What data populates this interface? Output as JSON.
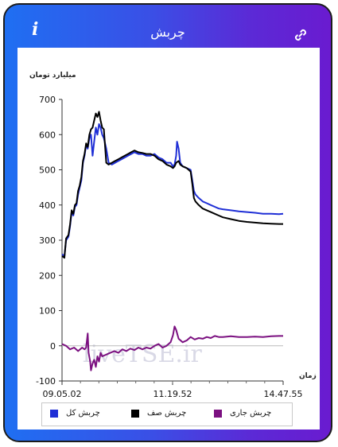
{
  "header": {
    "title": "چربش",
    "info_icon": "i",
    "link_icon_name": "link-icon"
  },
  "colors": {
    "gradient_start": "#1f6ff2",
    "gradient_end": "#6a1bd0",
    "series_total": "#1f2fd6",
    "series_queue": "#000000",
    "series_current": "#7b1080"
  },
  "watermark": "liveTSE.ir",
  "chart_data": {
    "type": "line",
    "ylabel": "میلیارد تومان",
    "xlabel": "زمان",
    "ylim": [
      -100,
      700
    ],
    "yticks": [
      700,
      600,
      500,
      400,
      300,
      200,
      100,
      0,
      -100
    ],
    "xticks": [
      "09.05.02",
      "11.19.52",
      "14.47.55"
    ],
    "grid": false,
    "legend_position": "bottom",
    "series": [
      {
        "name": "چربش کل",
        "color": "#1f2fd6",
        "values": [
          [
            0,
            260
          ],
          [
            3,
            255
          ],
          [
            5,
            300
          ],
          [
            8,
            310
          ],
          [
            10,
            340
          ],
          [
            12,
            380
          ],
          [
            14,
            370
          ],
          [
            16,
            395
          ],
          [
            18,
            400
          ],
          [
            20,
            430
          ],
          [
            22,
            450
          ],
          [
            24,
            470
          ],
          [
            26,
            520
          ],
          [
            28,
            540
          ],
          [
            30,
            570
          ],
          [
            32,
            560
          ],
          [
            34,
            590
          ],
          [
            36,
            600
          ],
          [
            38,
            540
          ],
          [
            40,
            580
          ],
          [
            42,
            620
          ],
          [
            44,
            600
          ],
          [
            46,
            630
          ],
          [
            48,
            620
          ],
          [
            50,
            600
          ],
          [
            52,
            590
          ],
          [
            55,
            560
          ],
          [
            58,
            520
          ],
          [
            62,
            515
          ],
          [
            66,
            520
          ],
          [
            70,
            525
          ],
          [
            74,
            530
          ],
          [
            78,
            535
          ],
          [
            82,
            540
          ],
          [
            86,
            545
          ],
          [
            90,
            550
          ],
          [
            95,
            545
          ],
          [
            100,
            545
          ],
          [
            105,
            540
          ],
          [
            110,
            540
          ],
          [
            115,
            545
          ],
          [
            120,
            535
          ],
          [
            125,
            530
          ],
          [
            130,
            520
          ],
          [
            135,
            520
          ],
          [
            138,
            510
          ],
          [
            140,
            515
          ],
          [
            142,
            540
          ],
          [
            143,
            580
          ],
          [
            145,
            560
          ],
          [
            147,
            520
          ],
          [
            150,
            510
          ],
          [
            155,
            505
          ],
          [
            160,
            500
          ],
          [
            162,
            470
          ],
          [
            164,
            440
          ],
          [
            166,
            430
          ],
          [
            170,
            420
          ],
          [
            175,
            410
          ],
          [
            180,
            405
          ],
          [
            185,
            400
          ],
          [
            190,
            395
          ],
          [
            195,
            390
          ],
          [
            200,
            388
          ],
          [
            210,
            385
          ],
          [
            220,
            382
          ],
          [
            230,
            380
          ],
          [
            240,
            378
          ],
          [
            250,
            375
          ],
          [
            260,
            375
          ],
          [
            270,
            374
          ],
          [
            275,
            375
          ]
        ]
      },
      {
        "name": "چربش صف",
        "color": "#000000",
        "values": [
          [
            0,
            255
          ],
          [
            3,
            250
          ],
          [
            5,
            305
          ],
          [
            8,
            315
          ],
          [
            10,
            345
          ],
          [
            12,
            385
          ],
          [
            14,
            375
          ],
          [
            16,
            400
          ],
          [
            18,
            405
          ],
          [
            20,
            440
          ],
          [
            22,
            455
          ],
          [
            24,
            480
          ],
          [
            26,
            525
          ],
          [
            28,
            545
          ],
          [
            30,
            575
          ],
          [
            32,
            565
          ],
          [
            34,
            600
          ],
          [
            36,
            615
          ],
          [
            38,
            620
          ],
          [
            40,
            640
          ],
          [
            42,
            660
          ],
          [
            44,
            650
          ],
          [
            46,
            665
          ],
          [
            48,
            640
          ],
          [
            50,
            620
          ],
          [
            52,
            615
          ],
          [
            55,
            520
          ],
          [
            58,
            515
          ],
          [
            62,
            520
          ],
          [
            66,
            525
          ],
          [
            70,
            530
          ],
          [
            74,
            535
          ],
          [
            78,
            540
          ],
          [
            82,
            545
          ],
          [
            86,
            550
          ],
          [
            90,
            555
          ],
          [
            95,
            550
          ],
          [
            100,
            548
          ],
          [
            105,
            545
          ],
          [
            110,
            545
          ],
          [
            115,
            540
          ],
          [
            120,
            530
          ],
          [
            125,
            525
          ],
          [
            130,
            515
          ],
          [
            135,
            510
          ],
          [
            138,
            505
          ],
          [
            140,
            510
          ],
          [
            142,
            520
          ],
          [
            145,
            525
          ],
          [
            147,
            515
          ],
          [
            150,
            510
          ],
          [
            155,
            505
          ],
          [
            160,
            495
          ],
          [
            162,
            460
          ],
          [
            164,
            420
          ],
          [
            166,
            410
          ],
          [
            170,
            400
          ],
          [
            175,
            390
          ],
          [
            180,
            385
          ],
          [
            185,
            380
          ],
          [
            190,
            375
          ],
          [
            195,
            370
          ],
          [
            200,
            365
          ],
          [
            210,
            360
          ],
          [
            220,
            355
          ],
          [
            230,
            352
          ],
          [
            240,
            350
          ],
          [
            250,
            348
          ],
          [
            260,
            347
          ],
          [
            270,
            346
          ],
          [
            275,
            346
          ]
        ]
      },
      {
        "name": "چربش جاری",
        "color": "#7b1080",
        "values": [
          [
            0,
            5
          ],
          [
            5,
            0
          ],
          [
            10,
            -10
          ],
          [
            15,
            -5
          ],
          [
            20,
            -15
          ],
          [
            25,
            -5
          ],
          [
            28,
            -10
          ],
          [
            30,
            -5
          ],
          [
            32,
            35
          ],
          [
            33,
            -20
          ],
          [
            35,
            -45
          ],
          [
            36,
            -70
          ],
          [
            38,
            -50
          ],
          [
            40,
            -40
          ],
          [
            42,
            -60
          ],
          [
            44,
            -30
          ],
          [
            46,
            -45
          ],
          [
            48,
            -20
          ],
          [
            50,
            -30
          ],
          [
            55,
            -25
          ],
          [
            60,
            -20
          ],
          [
            65,
            -15
          ],
          [
            70,
            -20
          ],
          [
            75,
            -10
          ],
          [
            80,
            -15
          ],
          [
            85,
            -8
          ],
          [
            90,
            -12
          ],
          [
            95,
            -5
          ],
          [
            100,
            -10
          ],
          [
            105,
            -5
          ],
          [
            110,
            -8
          ],
          [
            115,
            0
          ],
          [
            120,
            5
          ],
          [
            125,
            -5
          ],
          [
            130,
            0
          ],
          [
            135,
            10
          ],
          [
            138,
            30
          ],
          [
            140,
            55
          ],
          [
            142,
            45
          ],
          [
            145,
            20
          ],
          [
            150,
            10
          ],
          [
            155,
            15
          ],
          [
            160,
            25
          ],
          [
            165,
            18
          ],
          [
            170,
            22
          ],
          [
            175,
            20
          ],
          [
            180,
            25
          ],
          [
            185,
            22
          ],
          [
            190,
            28
          ],
          [
            195,
            25
          ],
          [
            200,
            25
          ],
          [
            210,
            27
          ],
          [
            220,
            25
          ],
          [
            230,
            25
          ],
          [
            240,
            26
          ],
          [
            250,
            25
          ],
          [
            260,
            27
          ],
          [
            270,
            28
          ],
          [
            275,
            28
          ]
        ]
      }
    ]
  }
}
